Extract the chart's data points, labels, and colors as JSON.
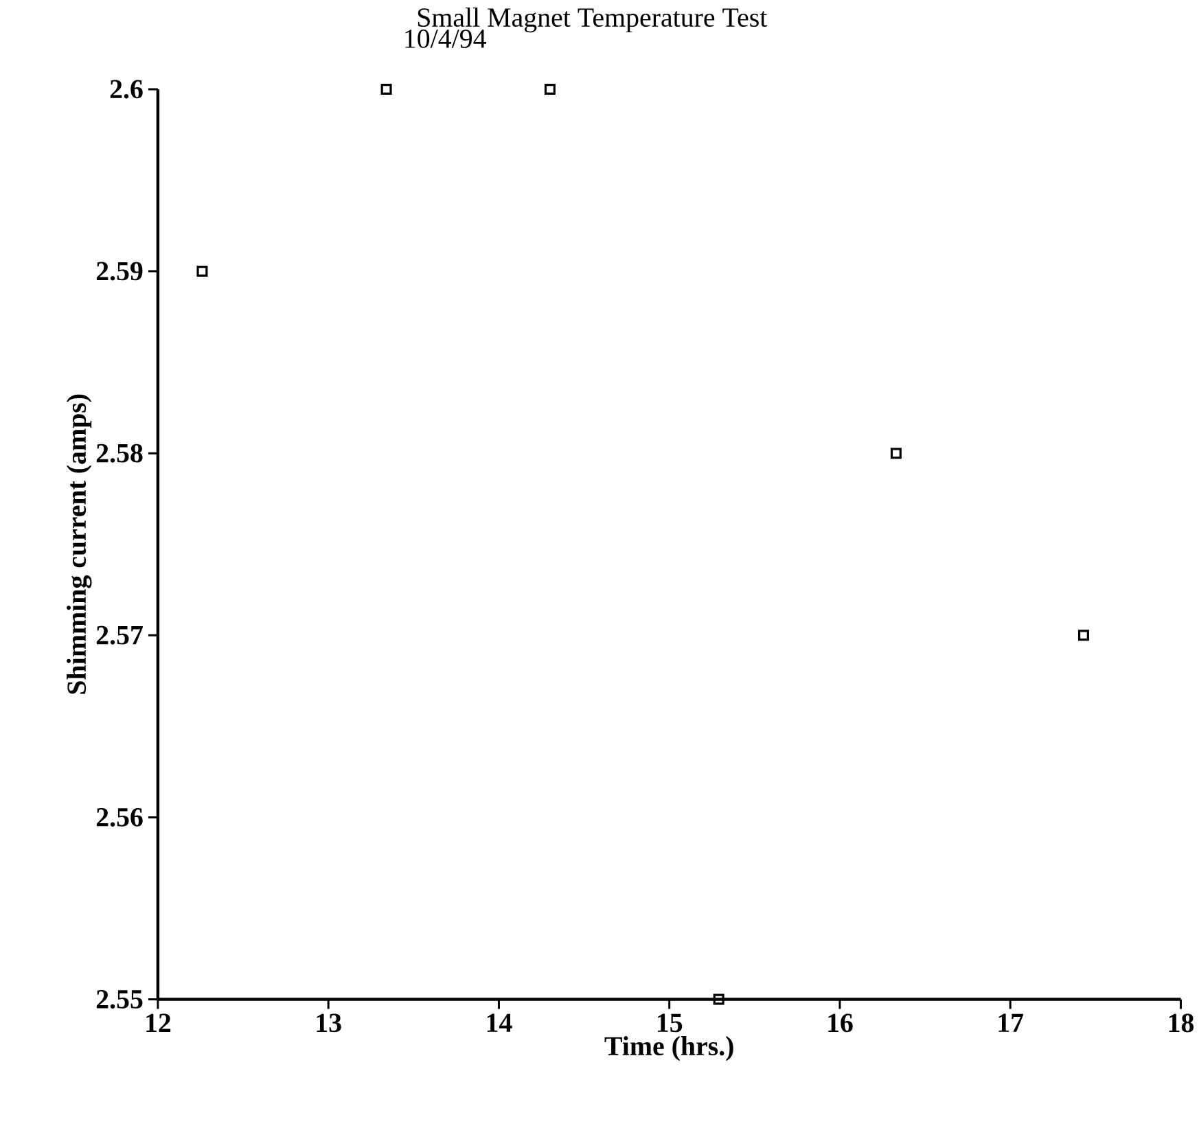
{
  "chart_data": {
    "type": "scatter",
    "title": "Small Magnet Temperature Test",
    "subtitle": "10/4/94",
    "xlabel": "Time (hrs.)",
    "ylabel": "Shimming current (amps)",
    "x": [
      12.26,
      13.34,
      14.3,
      15.29,
      16.33,
      17.43
    ],
    "values": [
      2.59,
      2.6,
      2.6,
      2.55,
      2.58,
      2.57
    ],
    "color": "#000000",
    "xlim": [
      12,
      18
    ],
    "xticks": [
      12,
      13,
      14,
      15,
      16,
      17,
      18
    ],
    "ylim": [
      2.55,
      2.6
    ],
    "yticks": [
      2.55,
      2.56,
      2.57,
      2.58,
      2.59,
      2.6
    ],
    "marker": "square",
    "grid": false
  }
}
